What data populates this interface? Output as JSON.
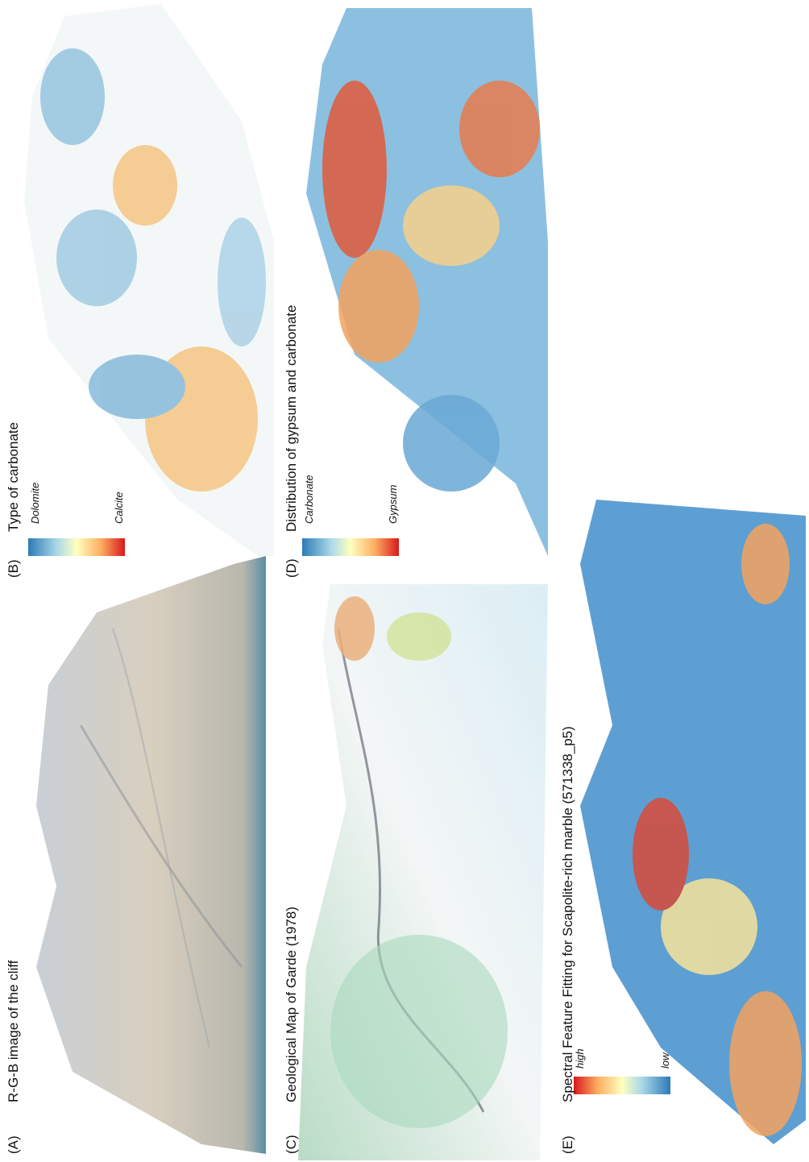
{
  "panels": [
    {
      "label": "(A)",
      "title": "R-G-B image of the cliff"
    },
    {
      "label": "(B)",
      "title": "Type of carbonate",
      "colorbar": [
        "Dolomite",
        "Calcite"
      ]
    },
    {
      "label": "(C)",
      "title": "Geological Map of Garde (1978)"
    },
    {
      "label": "(D)",
      "title": "Distribution of gypsum and carbonate",
      "colorbar": [
        "Carbonate",
        "Gypsum"
      ]
    },
    {
      "label": "(E)",
      "title": "Spectral Feature Fitting for Scapolite-rich marble (571338_p5)",
      "colorbar": [
        "high",
        "low"
      ]
    }
  ]
}
